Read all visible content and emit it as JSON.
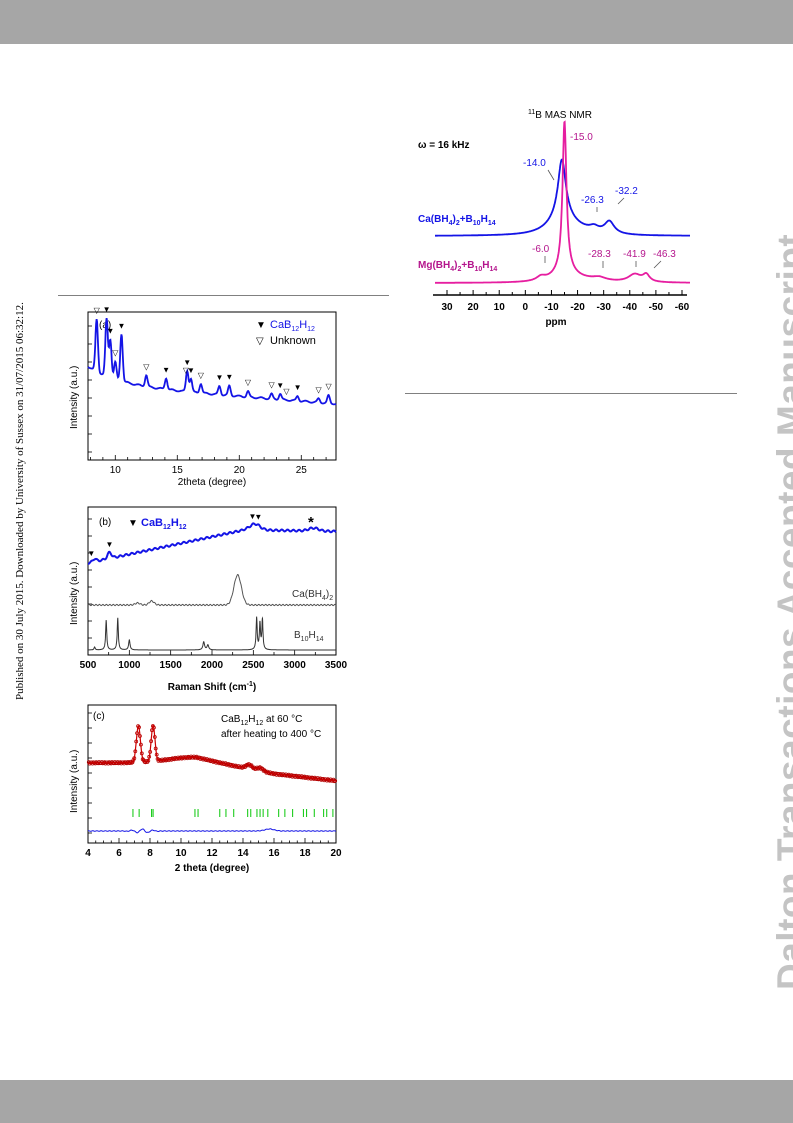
{
  "page": {
    "side_note": "Published on 30 July 2015. Downloaded by University of Sussex on 31/07/2015 06:32:12.",
    "watermark": "Dalton Transactions Accepted Manuscript"
  },
  "colors": {
    "blue": "#1414e6",
    "magenta": "#e61ea0",
    "magenta_label": "#b4148c",
    "red": "#cc0000",
    "green": "#1ecc1e",
    "grey": "#555555"
  },
  "panel_a": {
    "label": "(a)",
    "ylabel": "Intensity (a.u.)",
    "xlabel": "2theta (degree)",
    "xticks": [
      "10",
      "15",
      "20",
      "25"
    ],
    "legend": [
      {
        "marker": "▼",
        "text": "CaB",
        "sub1": "12",
        "mid": "H",
        "sub2": "12",
        "color": "#1414e6"
      },
      {
        "marker": "▽",
        "text": "Unknown",
        "sub1": "",
        "mid": "",
        "sub2": "",
        "color": "#000000"
      }
    ]
  },
  "panel_b": {
    "label": "(b)",
    "ylabel": "Intensity (a.u.)",
    "xlabel_main": "Raman Shift (cm",
    "xlabel_sup": "-1",
    "xlabel_end": ")",
    "xticks": [
      "500",
      "1000",
      "1500",
      "2000",
      "2500",
      "3000",
      "3500"
    ],
    "legend": {
      "marker": "▼",
      "text": "CaB",
      "sub1": "12",
      "mid": "H",
      "sub2": "12"
    },
    "star": "*",
    "curve_labels": [
      {
        "main": "Ca(BH",
        "sub": "4",
        "end": ")",
        "sub2": "2"
      },
      {
        "main": "B",
        "sub": "10",
        "end": "H",
        "sub2": "14"
      }
    ]
  },
  "panel_c": {
    "label": "(c)",
    "ylabel": "Intensity (a.u.)",
    "xlabel": "2 theta (degree)",
    "xticks": [
      "4",
      "6",
      "8",
      "10",
      "12",
      "14",
      "16",
      "18",
      "20"
    ],
    "note_line1_a": "CaB",
    "note_line1_s1": "12",
    "note_line1_b": "H",
    "note_line1_s2": "12",
    "note_line1_c": " at 60 °C",
    "note_line2": "after heating to 400 °C"
  },
  "nmr": {
    "title_sup": "11",
    "title": "B MAS NMR",
    "omega": "ω = 16 kHz",
    "xlabel": "ppm",
    "xticks": [
      "30",
      "20",
      "10",
      "0",
      "-10",
      "-20",
      "-30",
      "-40",
      "-50",
      "-60"
    ],
    "ca_label": {
      "a": "Ca(BH",
      "s1": "4",
      "b": ")",
      "s2": "2",
      "c": "+B",
      "s3": "10",
      "d": "H",
      "s4": "14"
    },
    "mg_label": {
      "a": "Mg(BH",
      "s1": "4",
      "b": ")",
      "s2": "2",
      "c": "+B",
      "s3": "10",
      "d": "H",
      "s4": "14"
    },
    "ca_peaks": [
      "-14.0",
      "-26.3",
      "-32.2"
    ],
    "mg_peaks": [
      "-15.0",
      "-6.0",
      "-28.3",
      "-41.9",
      "-46.3"
    ]
  }
}
